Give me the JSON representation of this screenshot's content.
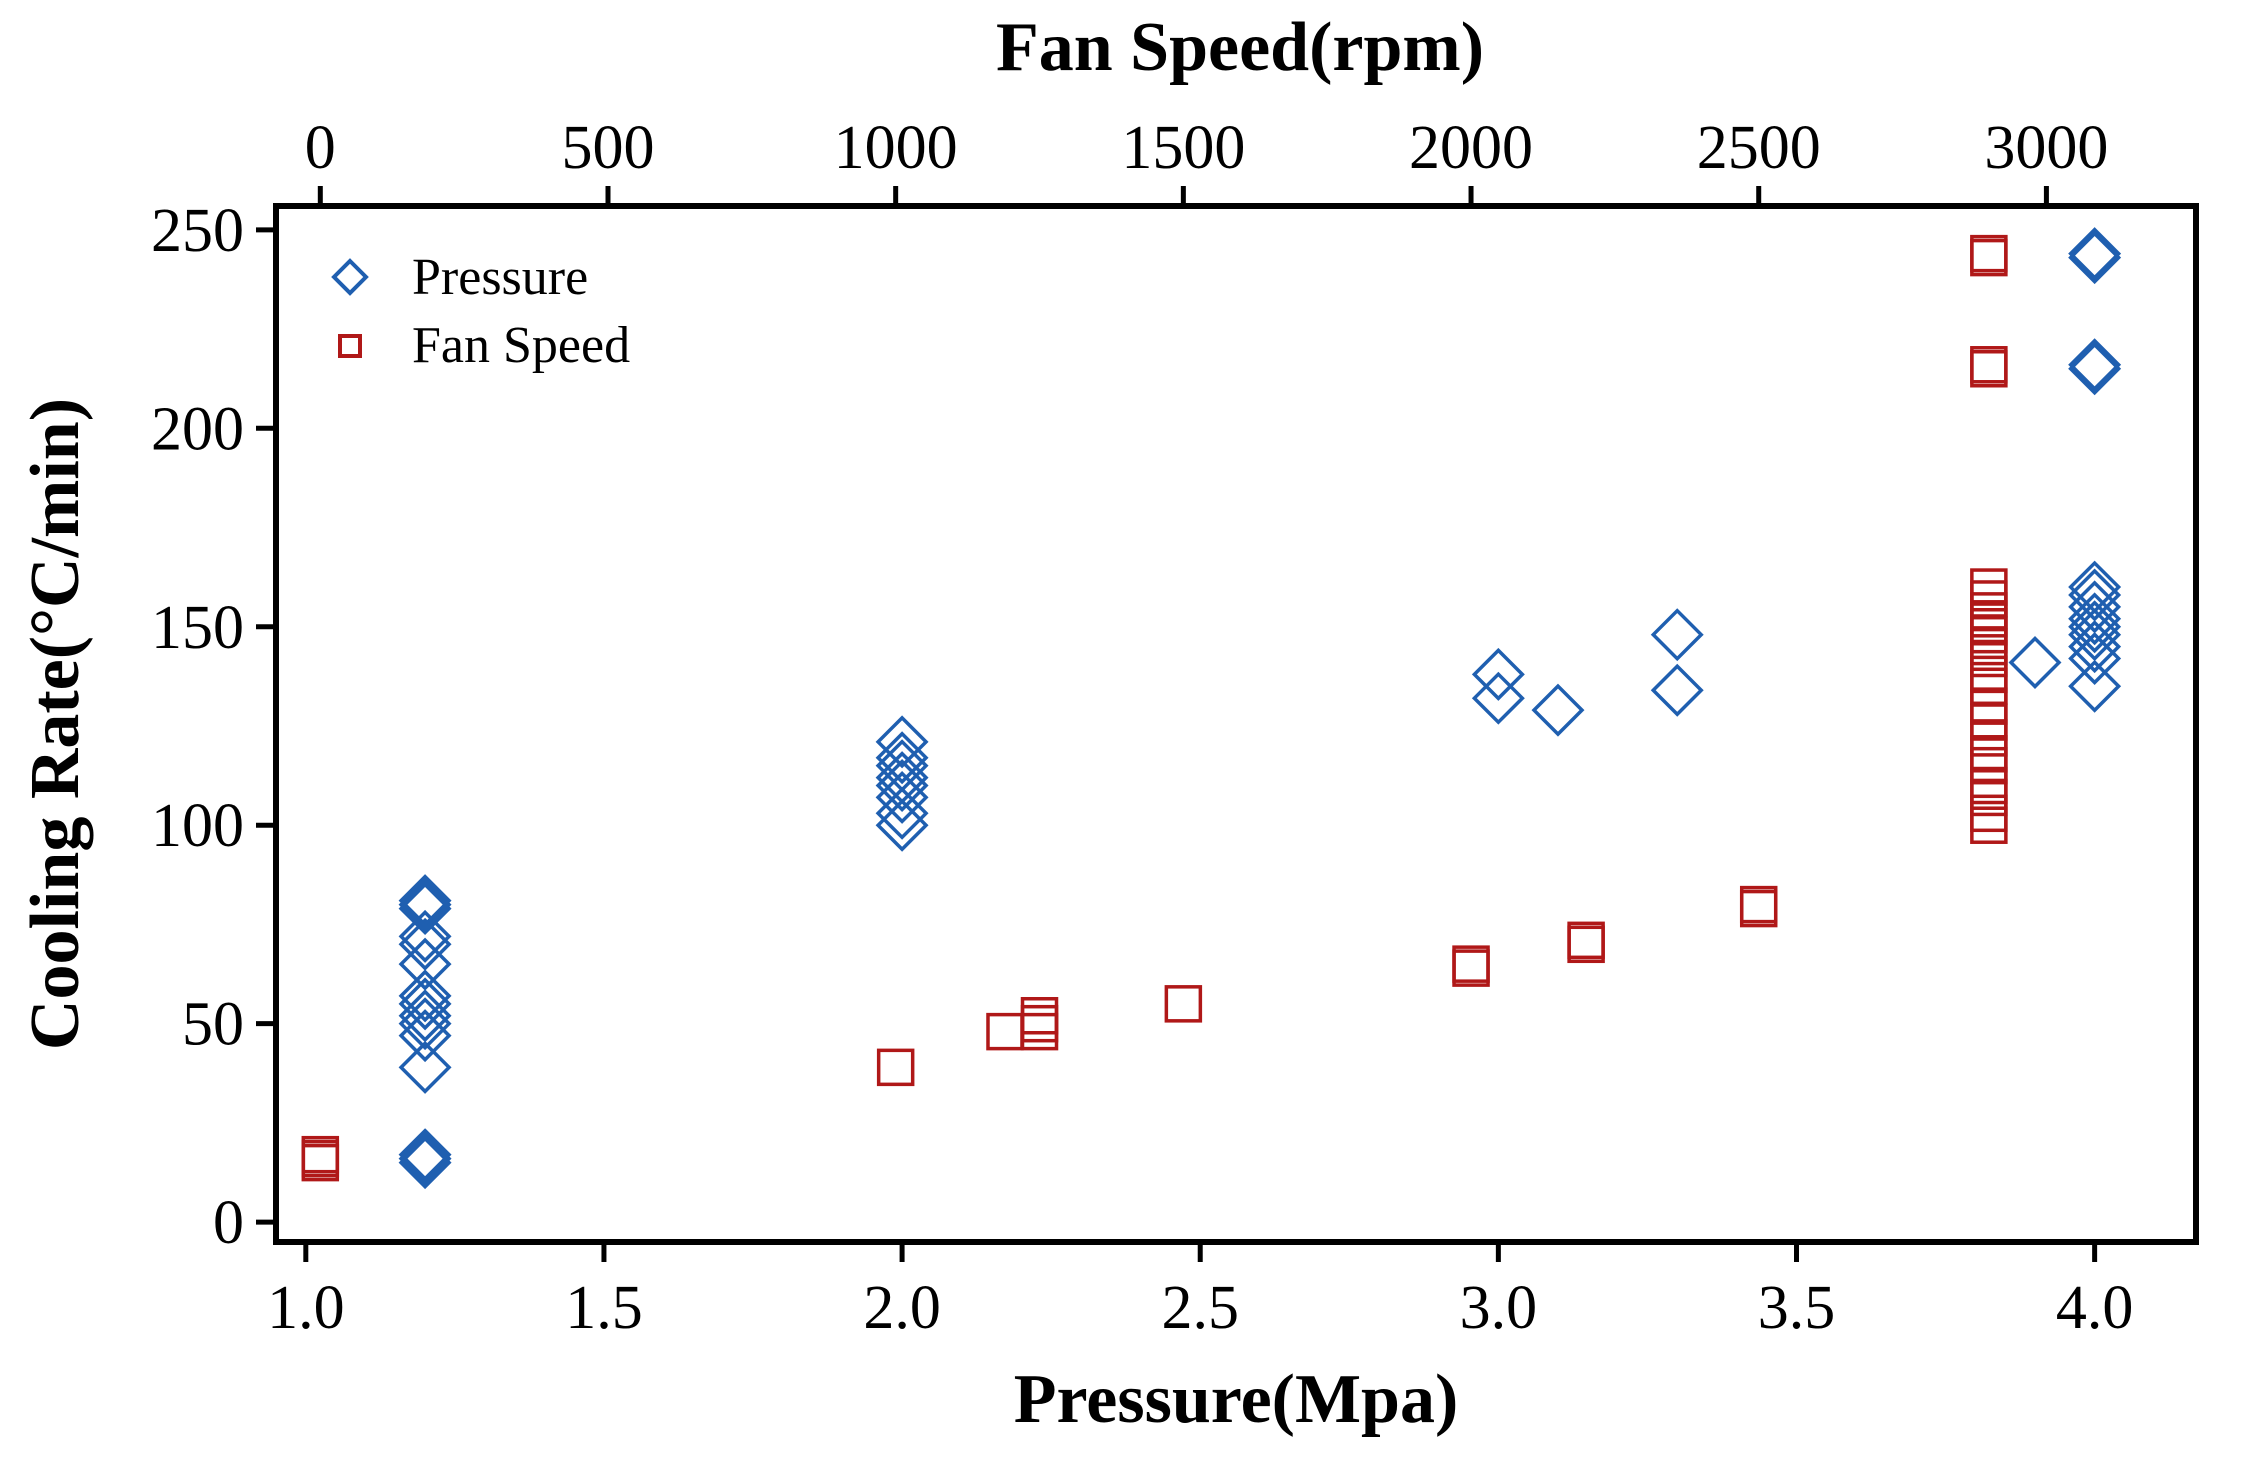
{
  "chart_data": {
    "type": "scatter",
    "xlabel": "Pressure(Mpa)",
    "x2label": "Fan Speed(rpm)",
    "ylabel": "Cooling Rate(°C/min)",
    "xlim": [
      0.95,
      4.17
    ],
    "x2lim": [
      -77,
      3260
    ],
    "ylim": [
      -5,
      256
    ],
    "xticks": [
      "1.0",
      "1.5",
      "2.0",
      "2.5",
      "3.0",
      "3.5",
      "4.0"
    ],
    "x2ticks": [
      "0",
      "500",
      "1000",
      "1500",
      "2000",
      "2500",
      "3000"
    ],
    "yticks": [
      "0",
      "50",
      "100",
      "150",
      "200",
      "250"
    ],
    "legend_position": "top-left",
    "colors": {
      "pressure": "#1f5fb0",
      "fan": "#b01818"
    },
    "series": [
      {
        "name": "Pressure",
        "axis": "bottom",
        "marker": "diamond",
        "points": [
          [
            1.2,
            15
          ],
          [
            1.2,
            16
          ],
          [
            1.2,
            17
          ],
          [
            1.2,
            39
          ],
          [
            1.2,
            47
          ],
          [
            1.2,
            50
          ],
          [
            1.2,
            52
          ],
          [
            1.2,
            55
          ],
          [
            1.2,
            57
          ],
          [
            1.2,
            65
          ],
          [
            1.2,
            70
          ],
          [
            1.2,
            72
          ],
          [
            1.2,
            79
          ],
          [
            1.2,
            80
          ],
          [
            1.2,
            81
          ],
          [
            2.0,
            100
          ],
          [
            2.0,
            103
          ],
          [
            2.0,
            107
          ],
          [
            2.0,
            110
          ],
          [
            2.0,
            112
          ],
          [
            2.0,
            115
          ],
          [
            2.0,
            117
          ],
          [
            2.0,
            121
          ],
          [
            3.0,
            132
          ],
          [
            3.0,
            138
          ],
          [
            3.1,
            129
          ],
          [
            3.3,
            134
          ],
          [
            3.3,
            148
          ],
          [
            3.9,
            141
          ],
          [
            4.0,
            135
          ],
          [
            4.0,
            142
          ],
          [
            4.0,
            145
          ],
          [
            4.0,
            148
          ],
          [
            4.0,
            150
          ],
          [
            4.0,
            152
          ],
          [
            4.0,
            155
          ],
          [
            4.0,
            158
          ],
          [
            4.0,
            160
          ],
          [
            4.0,
            215
          ],
          [
            4.0,
            216
          ],
          [
            4.0,
            243
          ],
          [
            4.0,
            244
          ]
        ]
      },
      {
        "name": "Fan Speed",
        "axis": "top",
        "marker": "square",
        "points": [
          [
            0,
            15
          ],
          [
            0,
            16
          ],
          [
            0,
            17
          ],
          [
            1000,
            39
          ],
          [
            1190,
            48
          ],
          [
            1250,
            48
          ],
          [
            1250,
            50
          ],
          [
            1250,
            52
          ],
          [
            1500,
            55
          ],
          [
            2000,
            64
          ],
          [
            2000,
            65
          ],
          [
            2200,
            70
          ],
          [
            2200,
            71
          ],
          [
            2500,
            79
          ],
          [
            2500,
            80
          ],
          [
            2900,
            100
          ],
          [
            2900,
            103
          ],
          [
            2900,
            107
          ],
          [
            2900,
            110
          ],
          [
            2900,
            115
          ],
          [
            2900,
            118
          ],
          [
            2900,
            122
          ],
          [
            2900,
            126
          ],
          [
            2900,
            130
          ],
          [
            2900,
            135
          ],
          [
            2900,
            138
          ],
          [
            2900,
            142
          ],
          [
            2900,
            145
          ],
          [
            2900,
            148
          ],
          [
            2900,
            150
          ],
          [
            2900,
            152
          ],
          [
            2900,
            154
          ],
          [
            2900,
            157
          ],
          [
            2900,
            160
          ],
          [
            2900,
            215
          ],
          [
            2900,
            216
          ],
          [
            2900,
            243
          ],
          [
            2900,
            244
          ]
        ]
      }
    ]
  }
}
